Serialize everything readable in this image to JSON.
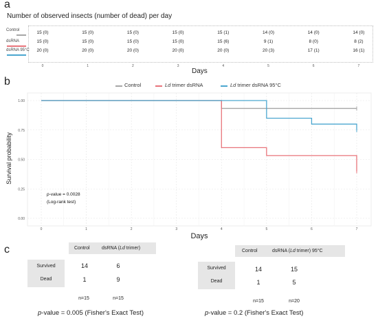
{
  "panel_a": {
    "letter": "a",
    "title": "Number of observed insects (number of dead) per day",
    "rows": [
      {
        "label": "Control",
        "color": "#a6a6a6",
        "values": [
          "15 (0)",
          "15 (0)",
          "15 (0)",
          "15 (0)",
          "15 (1)",
          "14 (0)",
          "14 (0)",
          "14 (0)"
        ]
      },
      {
        "label": "dsRNA",
        "color": "#e8737a",
        "values": [
          "15 (0)",
          "15 (0)",
          "15 (0)",
          "15 (0)",
          "15 (6)",
          "9 (1)",
          "8 (0)",
          "8 (2)"
        ]
      },
      {
        "label": "dsRNA 95°C",
        "color": "#4aa6cf",
        "values": [
          "20 (0)",
          "20 (0)",
          "20 (0)",
          "20 (0)",
          "20 (0)",
          "20 (3)",
          "17 (1)",
          "16 (1)"
        ]
      }
    ],
    "day_ticks": [
      "0",
      "1",
      "2",
      "3",
      "4",
      "5",
      "6",
      "7"
    ],
    "xlabel": "Days"
  },
  "panel_b": {
    "letter": "b",
    "legend": [
      {
        "italic": "",
        "rest": "Control",
        "color": "#a6a6a6"
      },
      {
        "italic": "Ld",
        "rest": " trimer dsRNA",
        "color": "#e8737a"
      },
      {
        "italic": "Ld",
        "rest": " trimer dsRNA 95°C",
        "color": "#4aa6cf"
      }
    ],
    "pvalue_prefix": "p",
    "pvalue_text": "-value = 0.0028",
    "test_note": "(Log-rank test)"
  },
  "chart_data": {
    "type": "line",
    "step": true,
    "xlabel": "Days",
    "ylabel": "Survival probability",
    "xlim": [
      0,
      7
    ],
    "ylim": [
      0,
      1
    ],
    "x_ticks": [
      "0",
      "1",
      "2",
      "3",
      "4",
      "5",
      "6",
      "7"
    ],
    "y_ticks": [
      "0.00",
      "0.25",
      "0.50",
      "0.75",
      "1.00"
    ],
    "grid": true,
    "legend_position": "top",
    "series": [
      {
        "name": "Control",
        "color": "#a6a6a6",
        "x": [
          0,
          4,
          7
        ],
        "y": [
          1.0,
          0.933,
          0.933
        ],
        "censor_end": 0.933
      },
      {
        "name": "Ld trimer dsRNA",
        "color": "#e8737a",
        "x": [
          0,
          4,
          5,
          7
        ],
        "y": [
          1.0,
          0.6,
          0.533,
          0.4
        ],
        "censor_end": 0.4
      },
      {
        "name": "Ld trimer dsRNA 95°C",
        "color": "#4aa6cf",
        "x": [
          0,
          5,
          6,
          7
        ],
        "y": [
          1.0,
          0.85,
          0.8,
          0.75
        ],
        "censor_end": 0.75
      }
    ]
  },
  "panel_c": {
    "letter": "c",
    "left": {
      "col1": "Control",
      "col2_pre": "dsRNA (",
      "col2_it": "Ld",
      "col2_post": " trimer)",
      "row_labels": [
        "Survived",
        "Dead"
      ],
      "values": [
        [
          "14",
          "6"
        ],
        [
          "1",
          "9"
        ]
      ],
      "n": [
        "n=15",
        "n=15"
      ],
      "p_italic": "p",
      "p_rest": "-value = 0.005 (Fisher's Exact Test)"
    },
    "right": {
      "col1": "Control",
      "col2_pre": "dsRNA (",
      "col2_it": "Ld",
      "col2_post": " trimer) 95°C",
      "row_labels": [
        "Survived",
        "Dead"
      ],
      "values": [
        [
          "14",
          "15"
        ],
        [
          "1",
          "5"
        ]
      ],
      "n": [
        "n=15",
        "n=20"
      ],
      "p_italic": "p",
      "p_rest": "-value = 0.2 (Fisher's Exact Test)"
    }
  }
}
